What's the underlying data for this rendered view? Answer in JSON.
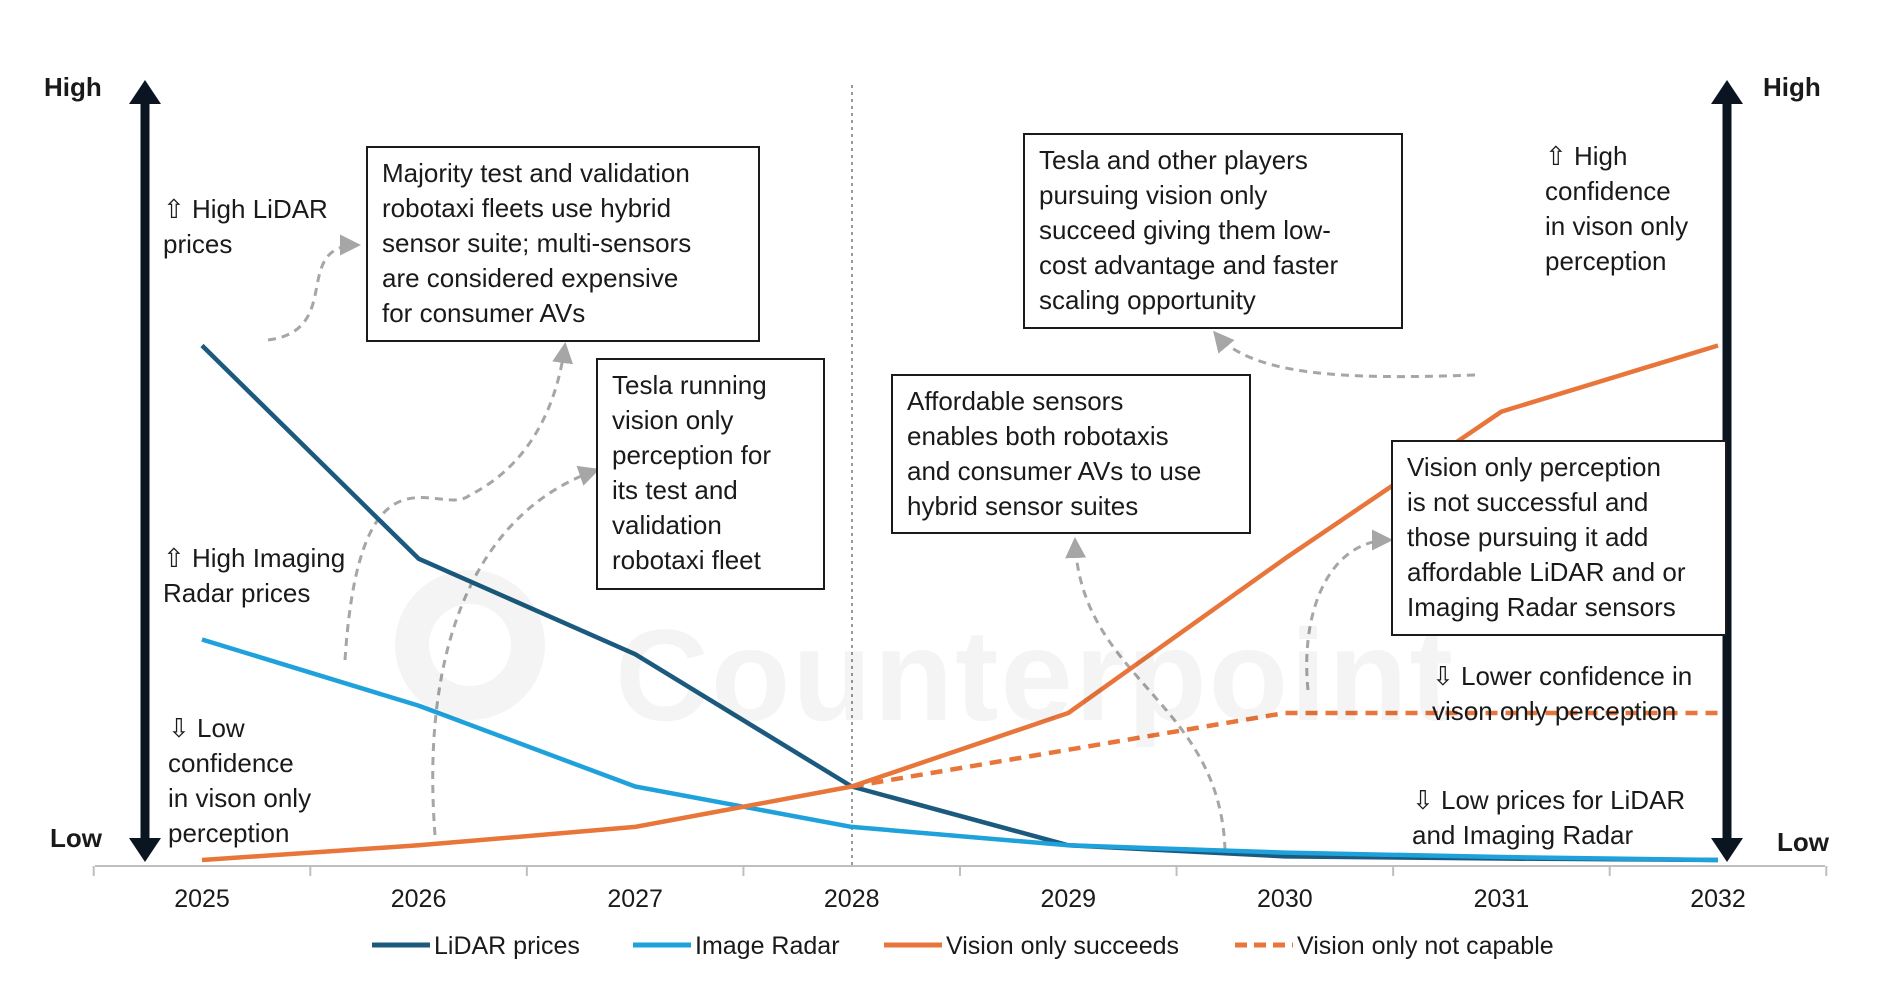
{
  "chart_data": {
    "type": "line",
    "x": [
      "2025",
      "2026",
      "2027",
      "2028",
      "2029",
      "2030",
      "2031",
      "2032"
    ],
    "ylim": [
      0,
      10
    ],
    "series": [
      {
        "name": "LiDAR prices",
        "color": "#1b5a7e",
        "dashed": false,
        "values": [
          7.0,
          4.1,
          2.8,
          1.0,
          0.2,
          0.05,
          0.02,
          0.0
        ]
      },
      {
        "name": "Image Radar",
        "color": "#1fa2db",
        "dashed": false,
        "values": [
          3.0,
          2.1,
          1.0,
          0.45,
          0.2,
          0.1,
          0.04,
          0.0
        ]
      },
      {
        "name": "Vision only succeeds",
        "color": "#e8753a",
        "dashed": false,
        "values": [
          0.0,
          0.2,
          0.45,
          1.0,
          2.0,
          4.1,
          6.1,
          7.0
        ]
      },
      {
        "name": "Vision only not capable",
        "color": "#e8753a",
        "dashed": true,
        "values": [
          null,
          null,
          null,
          1.0,
          1.5,
          2.0,
          2.0,
          2.0
        ]
      }
    ],
    "left_axis": {
      "top": "High",
      "bottom": "Low"
    },
    "right_axis": {
      "top": "High",
      "bottom": "Low"
    },
    "grid": false,
    "legend_position": "bottom"
  },
  "annotations": {
    "lidar_high": "⇧ High LiDAR\nprices",
    "radar_high": "⇧ High Imaging\nRadar prices",
    "low_conf_left": "⇩ Low\nconfidence\nin vison only\nperception",
    "high_conf_right": "⇧ High\nconfidence\nin vison only\nperception",
    "lower_conf_right": "⇩ Lower confidence in\nvison only perception",
    "low_prices_right": "⇩ Low prices for LiDAR\nand Imaging Radar"
  },
  "boxes": {
    "majority": "Majority test and validation\nrobotaxi fleets use hybrid\nsensor suite; multi-sensors\nare considered expensive\nfor consumer AVs",
    "tesla_running": "Tesla running\nvision only\nperception for\nits test and\nvalidation\nrobotaxi fleet",
    "affordable": "Affordable sensors\nenables both robotaxis\nand consumer AVs to use\nhybrid sensor suites",
    "tesla_players": "Tesla and other players\npursuing vision only\nsucceed giving them low-\ncost advantage and faster\nscaling opportunity",
    "vision_fail": "Vision only perception\nis not successful and\nthose pursuing it add\naffordable LiDAR and or\nImaging Radar sensors"
  },
  "watermark": "Counterpoint"
}
